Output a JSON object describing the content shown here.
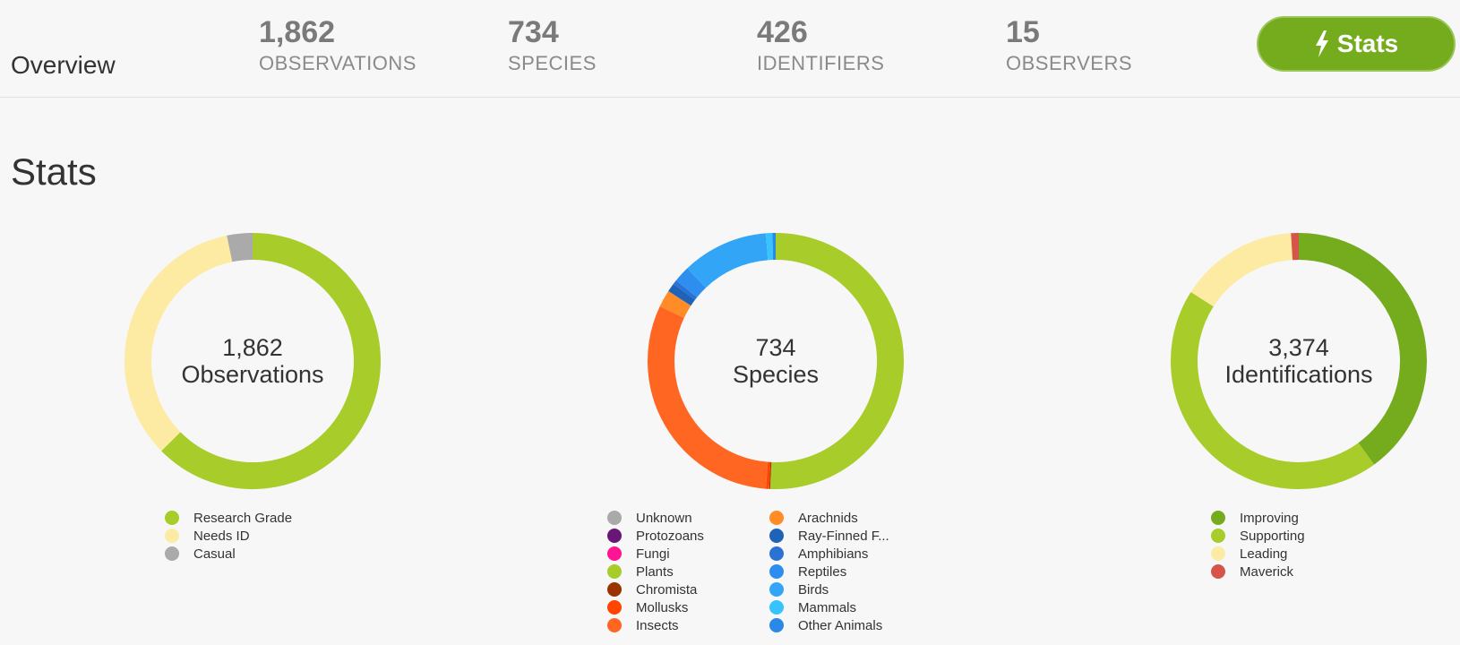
{
  "header": {
    "title": "Overview",
    "stats": [
      {
        "value": "1,862",
        "label": "OBSERVATIONS"
      },
      {
        "value": "734",
        "label": "SPECIES"
      },
      {
        "value": "426",
        "label": "IDENTIFIERS"
      },
      {
        "value": "15",
        "label": "OBSERVERS"
      }
    ],
    "button_label": "Stats",
    "button_icon": "lightning-bolt-icon",
    "accent_color": "#74ac1e"
  },
  "section_title": "Stats",
  "chart_data": [
    {
      "type": "pie",
      "donut": true,
      "center_value": "1,862",
      "center_label": "Observations",
      "slices": [
        {
          "label": "Research Grade",
          "value": 1166,
          "color": "#a8cc2a"
        },
        {
          "label": "Needs ID",
          "value": 636,
          "color": "#fdeba3"
        },
        {
          "label": "Casual",
          "value": 60,
          "color": "#aaaaaa"
        }
      ]
    },
    {
      "type": "pie",
      "donut": true,
      "center_value": "734",
      "center_label": "Species",
      "slices": [
        {
          "label": "Unknown",
          "value": 0,
          "color": "#aaaaaa"
        },
        {
          "label": "Protozoans",
          "value": 0,
          "color": "#691776"
        },
        {
          "label": "Fungi",
          "value": 0,
          "color": "#ff1493"
        },
        {
          "label": "Plants",
          "value": 372,
          "color": "#a8cc2a"
        },
        {
          "label": "Chromista",
          "value": 1,
          "color": "#993300"
        },
        {
          "label": "Mollusks",
          "value": 3,
          "color": "#ff4500"
        },
        {
          "label": "Insects",
          "value": 226,
          "color": "#ff6622"
        },
        {
          "label": "Arachnids",
          "value": 16,
          "color": "#ff8c26"
        },
        {
          "label": "Ray-Finned F...",
          "value": 8,
          "color": "#1e63b8"
        },
        {
          "label": "Amphibians",
          "value": 4,
          "color": "#2a72d4"
        },
        {
          "label": "Reptiles",
          "value": 15,
          "color": "#2e8ef0"
        },
        {
          "label": "Birds",
          "value": 80,
          "color": "#32a5f7"
        },
        {
          "label": "Mammals",
          "value": 6,
          "color": "#38c3ff"
        },
        {
          "label": "Other Animals",
          "value": 3,
          "color": "#2a88e6"
        }
      ]
    },
    {
      "type": "pie",
      "donut": true,
      "center_value": "3,374",
      "center_label": "Identifications",
      "slices": [
        {
          "label": "Improving",
          "value": 1349,
          "color": "#74ac1e"
        },
        {
          "label": "Supporting",
          "value": 1487,
          "color": "#a8cc2a"
        },
        {
          "label": "Leading",
          "value": 505,
          "color": "#fdeba3"
        },
        {
          "label": "Maverick",
          "value": 33,
          "color": "#d7544a"
        }
      ]
    }
  ]
}
